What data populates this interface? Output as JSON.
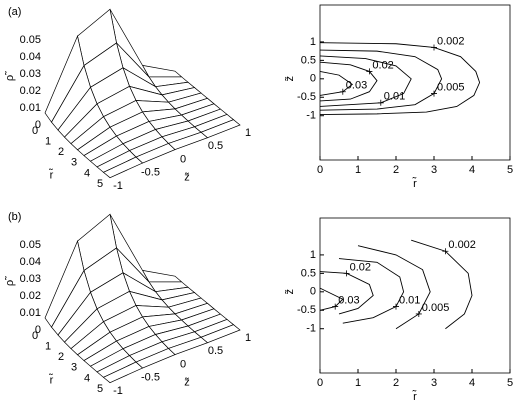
{
  "chart_data": [
    {
      "type": "surface",
      "label": "(a)",
      "xlabel": "r̃",
      "ylabel": "z̃",
      "zlabel": "ρ̃",
      "x": [
        0,
        0.5,
        1,
        1.5,
        2,
        2.5,
        3,
        3.5,
        4,
        4.5,
        5
      ],
      "y": [
        -1,
        -0.5,
        0,
        0.5,
        1
      ],
      "values": [
        [
          0.0071,
          0.0445,
          0.0525,
          0.0117,
          0.0005
        ],
        [
          0.0048,
          0.0303,
          0.0358,
          0.008,
          0.0003
        ],
        [
          0.0033,
          0.0206,
          0.0243,
          0.0054,
          0.0002
        ],
        [
          0.0022,
          0.014,
          0.0165,
          0.0037,
          0.0002
        ],
        [
          0.0015,
          0.0096,
          0.0113,
          0.0025,
          0.0001
        ],
        [
          0.001,
          0.0065,
          0.0077,
          0.0017,
          0.0001
        ],
        [
          0.0007,
          0.0044,
          0.0052,
          0.0012,
          0
        ],
        [
          0.0005,
          0.003,
          0.0036,
          0.0008,
          0
        ],
        [
          0.0003,
          0.0021,
          0.0024,
          0.0005,
          0
        ],
        [
          0.0002,
          0.0014,
          0.0016,
          0.0004,
          0
        ],
        [
          0.0002,
          0.001,
          0.0011,
          0.0003,
          0
        ]
      ],
      "xlim": [
        0,
        5
      ],
      "ylim": [
        -1,
        1
      ],
      "zlim": [
        0,
        0.05
      ],
      "xticks": [
        0,
        1,
        2,
        3,
        4,
        5
      ],
      "yticks": [
        -1,
        -0.5,
        0,
        0.5,
        1
      ],
      "zticks": [
        0,
        0.01,
        0.02,
        0.03,
        0.04,
        0.05
      ],
      "color": "#000000"
    },
    {
      "type": "contour",
      "xlabel": "r̃",
      "ylabel": "z̃",
      "xlim": [
        0,
        5
      ],
      "ylim": [
        -2.2,
        2
      ],
      "xticks": [
        0,
        1,
        2,
        3,
        4,
        5
      ],
      "yticks": [
        -1,
        -0.5,
        0,
        0.5,
        1
      ],
      "color": "#000000",
      "series": [
        {
          "name": "0.002",
          "x": [
            0,
            2,
            3,
            3.7,
            4.1,
            4.2,
            4.05,
            3.6,
            2.8,
            1.5,
            0
          ],
          "y": [
            0.98,
            0.95,
            0.85,
            0.6,
            0.2,
            -0.1,
            -0.45,
            -0.75,
            -0.9,
            -0.95,
            -0.97
          ]
        },
        {
          "name": "0.005",
          "x": [
            0,
            1.5,
            2.5,
            3.1,
            3.2,
            3,
            2.5,
            1.5,
            0
          ],
          "y": [
            0.78,
            0.75,
            0.6,
            0.25,
            0,
            -0.4,
            -0.7,
            -0.82,
            -0.85
          ]
        },
        {
          "name": "0.01",
          "x": [
            0,
            1.2,
            2,
            2.4,
            2.2,
            1.6,
            0
          ],
          "y": [
            0.62,
            0.55,
            0.35,
            0,
            -0.4,
            -0.65,
            -0.75
          ]
        },
        {
          "name": "0.02",
          "x": [
            0,
            0.8,
            1.3,
            1.5,
            1.3,
            0.8,
            0
          ],
          "y": [
            0.45,
            0.38,
            0.2,
            -0.05,
            -0.35,
            -0.55,
            -0.6
          ]
        },
        {
          "name": "0.03",
          "x": [
            0,
            0.5,
            0.85,
            0.6,
            0
          ],
          "y": [
            0.2,
            0.1,
            -0.15,
            -0.35,
            -0.45
          ]
        }
      ]
    },
    {
      "type": "surface",
      "label": "(b)",
      "xlabel": "r̃",
      "ylabel": "z̃",
      "zlabel": "ρ̃",
      "x": [
        0,
        0.5,
        1,
        1.5,
        2,
        2.5,
        3,
        3.5,
        4,
        4.5,
        5
      ],
      "y": [
        -1,
        -0.5,
        0,
        0.5,
        1
      ],
      "values": [
        [
          0.0071,
          0.0445,
          0.0525,
          0.0117,
          0.0005
        ],
        [
          0.0048,
          0.0303,
          0.0358,
          0.008,
          0.0003
        ],
        [
          0.0033,
          0.0206,
          0.0243,
          0.0054,
          0.0002
        ],
        [
          0.0022,
          0.014,
          0.0165,
          0.0037,
          0.0002
        ],
        [
          0.0015,
          0.0096,
          0.0113,
          0.0025,
          0.0001
        ],
        [
          0.001,
          0.0065,
          0.0077,
          0.0017,
          0.0001
        ],
        [
          0.0007,
          0.0044,
          0.0052,
          0.0012,
          0
        ],
        [
          0.0005,
          0.003,
          0.0036,
          0.0008,
          0
        ],
        [
          0.0003,
          0.0021,
          0.0024,
          0.0005,
          0
        ],
        [
          0.0002,
          0.0014,
          0.0016,
          0.0004,
          0
        ],
        [
          0.0002,
          0.001,
          0.0011,
          0.0003,
          0
        ]
      ],
      "xlim": [
        0,
        5
      ],
      "ylim": [
        -1,
        1
      ],
      "zlim": [
        0,
        0.05
      ],
      "xticks": [
        0,
        1,
        2,
        3,
        4,
        5
      ],
      "yticks": [
        -1,
        -0.5,
        0,
        0.5,
        1
      ],
      "zticks": [
        0,
        0.01,
        0.02,
        0.03,
        0.04,
        0.05
      ],
      "color": "#000000"
    },
    {
      "type": "contour",
      "xlabel": "r̃",
      "ylabel": "z̃",
      "xlim": [
        0,
        5
      ],
      "ylim": [
        -2.2,
        2
      ],
      "xticks": [
        0,
        1,
        2,
        3,
        4,
        5
      ],
      "yticks": [
        -1,
        -0.5,
        0,
        0.5,
        1
      ],
      "color": "#000000",
      "series": [
        {
          "name": "0.002",
          "x": [
            2.4,
            3.3,
            3.9,
            4,
            3.8,
            3.3
          ],
          "y": [
            1.4,
            1.1,
            0.5,
            -0.1,
            -0.6,
            -1
          ]
        },
        {
          "name": "0.005",
          "x": [
            1,
            2,
            2.7,
            2.9,
            2.6,
            2
          ],
          "y": [
            1.25,
            1,
            0.6,
            0,
            -0.6,
            -1
          ]
        },
        {
          "name": "0.01",
          "x": [
            0.5,
            1.5,
            2.1,
            2.2,
            2,
            1.4,
            0.6
          ],
          "y": [
            0.9,
            0.8,
            0.4,
            0,
            -0.4,
            -0.7,
            -0.85
          ]
        },
        {
          "name": "0.02",
          "x": [
            0,
            0.7,
            1.3,
            1.4,
            1,
            0.5
          ],
          "y": [
            0.55,
            0.5,
            0.2,
            -0.1,
            -0.45,
            -0.6
          ]
        },
        {
          "name": "0.03",
          "x": [
            0,
            0.6,
            0.4,
            0
          ],
          "y": [
            0.1,
            -0.2,
            -0.4,
            -0.5
          ]
        }
      ]
    }
  ]
}
